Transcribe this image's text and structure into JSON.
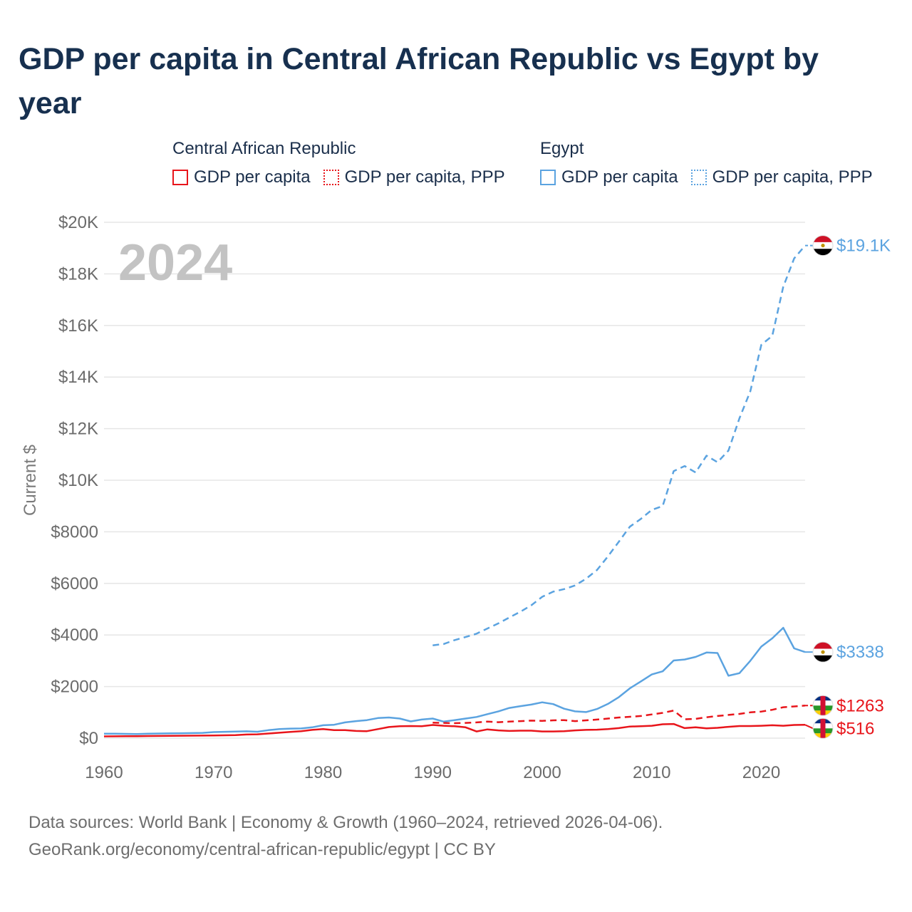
{
  "title": "GDP per capita in Central African Republic vs Egypt by year",
  "legend": {
    "groups": [
      {
        "title": "Central African Republic",
        "color": "#e8151b",
        "items": [
          {
            "label": "GDP per capita",
            "style": "solid"
          },
          {
            "label": "GDP per capita, PPP",
            "style": "dotted"
          }
        ]
      },
      {
        "title": "Egypt",
        "color": "#5ba3e0",
        "items": [
          {
            "label": "GDP per capita",
            "style": "solid"
          },
          {
            "label": "GDP per capita, PPP",
            "style": "dotted"
          }
        ]
      }
    ]
  },
  "chart_data": {
    "type": "line",
    "year_label": "2024",
    "ylabel": "Current $",
    "xlim": [
      1960,
      2024
    ],
    "ylim": [
      0,
      20000
    ],
    "xticks": [
      1960,
      1970,
      1980,
      1990,
      2000,
      2010,
      2020
    ],
    "xtick_labels": [
      "1960",
      "1970",
      "1980",
      "1990",
      "2000",
      "2010",
      "2020"
    ],
    "yticks": [
      0,
      2000,
      4000,
      6000,
      8000,
      10000,
      12000,
      14000,
      16000,
      18000,
      20000
    ],
    "ytick_labels": [
      "$0",
      "$2000",
      "$4000",
      "$6000",
      "$8000",
      "$10K",
      "$12K",
      "$14K",
      "$16K",
      "$18K",
      "$20K"
    ],
    "series": [
      {
        "name": "Egypt GDP per capita, PPP",
        "country": "Egypt",
        "color": "#5ba3e0",
        "dash": "dashed",
        "end_label": "$19.1K",
        "points": [
          [
            1990,
            3600
          ],
          [
            1991,
            3650
          ],
          [
            1992,
            3800
          ],
          [
            1993,
            3920
          ],
          [
            1994,
            4050
          ],
          [
            1995,
            4250
          ],
          [
            1996,
            4450
          ],
          [
            1997,
            4680
          ],
          [
            1998,
            4900
          ],
          [
            1999,
            5150
          ],
          [
            2000,
            5480
          ],
          [
            2001,
            5680
          ],
          [
            2002,
            5780
          ],
          [
            2003,
            5920
          ],
          [
            2004,
            6180
          ],
          [
            2005,
            6520
          ],
          [
            2006,
            7050
          ],
          [
            2007,
            7620
          ],
          [
            2008,
            8200
          ],
          [
            2009,
            8500
          ],
          [
            2010,
            8850
          ],
          [
            2011,
            9000
          ],
          [
            2012,
            10350
          ],
          [
            2013,
            10550
          ],
          [
            2014,
            10300
          ],
          [
            2015,
            10950
          ],
          [
            2016,
            10700
          ],
          [
            2017,
            11150
          ],
          [
            2018,
            12400
          ],
          [
            2019,
            13450
          ],
          [
            2020,
            15250
          ],
          [
            2021,
            15600
          ],
          [
            2022,
            17500
          ],
          [
            2023,
            18600
          ],
          [
            2024,
            19100
          ]
        ]
      },
      {
        "name": "Egypt GDP per capita",
        "country": "Egypt",
        "color": "#5ba3e0",
        "dash": "solid",
        "end_label": "$3338",
        "points": [
          [
            1960,
            170
          ],
          [
            1961,
            175
          ],
          [
            1962,
            165
          ],
          [
            1963,
            160
          ],
          [
            1964,
            170
          ],
          [
            1965,
            180
          ],
          [
            1966,
            185
          ],
          [
            1967,
            190
          ],
          [
            1968,
            195
          ],
          [
            1969,
            205
          ],
          [
            1970,
            235
          ],
          [
            1971,
            245
          ],
          [
            1972,
            255
          ],
          [
            1973,
            265
          ],
          [
            1974,
            250
          ],
          [
            1975,
            310
          ],
          [
            1976,
            350
          ],
          [
            1977,
            370
          ],
          [
            1978,
            375
          ],
          [
            1979,
            420
          ],
          [
            1980,
            500
          ],
          [
            1981,
            520
          ],
          [
            1982,
            610
          ],
          [
            1983,
            660
          ],
          [
            1984,
            700
          ],
          [
            1985,
            780
          ],
          [
            1986,
            800
          ],
          [
            1987,
            760
          ],
          [
            1988,
            650
          ],
          [
            1989,
            720
          ],
          [
            1990,
            760
          ],
          [
            1991,
            640
          ],
          [
            1992,
            700
          ],
          [
            1993,
            760
          ],
          [
            1994,
            820
          ],
          [
            1995,
            930
          ],
          [
            1996,
            1040
          ],
          [
            1997,
            1170
          ],
          [
            1998,
            1240
          ],
          [
            1999,
            1300
          ],
          [
            2000,
            1390
          ],
          [
            2001,
            1320
          ],
          [
            2002,
            1140
          ],
          [
            2003,
            1040
          ],
          [
            2004,
            1010
          ],
          [
            2005,
            1130
          ],
          [
            2006,
            1330
          ],
          [
            2007,
            1590
          ],
          [
            2008,
            1930
          ],
          [
            2009,
            2200
          ],
          [
            2010,
            2470
          ],
          [
            2011,
            2590
          ],
          [
            2012,
            3010
          ],
          [
            2013,
            3050
          ],
          [
            2014,
            3150
          ],
          [
            2015,
            3320
          ],
          [
            2016,
            3300
          ],
          [
            2017,
            2420
          ],
          [
            2018,
            2520
          ],
          [
            2019,
            3000
          ],
          [
            2020,
            3550
          ],
          [
            2021,
            3870
          ],
          [
            2022,
            4280
          ],
          [
            2023,
            3480
          ],
          [
            2024,
            3338
          ]
        ]
      },
      {
        "name": "Central African Republic GDP per capita, PPP",
        "country": "Central African Republic",
        "color": "#e8151b",
        "dash": "dashed",
        "end_label": "$1263",
        "points": [
          [
            1990,
            600
          ],
          [
            1991,
            590
          ],
          [
            1992,
            580
          ],
          [
            1993,
            590
          ],
          [
            1994,
            610
          ],
          [
            1995,
            640
          ],
          [
            1996,
            620
          ],
          [
            1997,
            640
          ],
          [
            1998,
            660
          ],
          [
            1999,
            680
          ],
          [
            2000,
            670
          ],
          [
            2001,
            690
          ],
          [
            2002,
            700
          ],
          [
            2003,
            660
          ],
          [
            2004,
            690
          ],
          [
            2005,
            720
          ],
          [
            2006,
            760
          ],
          [
            2007,
            800
          ],
          [
            2008,
            830
          ],
          [
            2009,
            860
          ],
          [
            2010,
            920
          ],
          [
            2011,
            980
          ],
          [
            2012,
            1070
          ],
          [
            2013,
            730
          ],
          [
            2014,
            750
          ],
          [
            2015,
            810
          ],
          [
            2016,
            860
          ],
          [
            2017,
            900
          ],
          [
            2018,
            940
          ],
          [
            2019,
            1000
          ],
          [
            2020,
            1030
          ],
          [
            2021,
            1100
          ],
          [
            2022,
            1200
          ],
          [
            2023,
            1230
          ],
          [
            2024,
            1263
          ]
        ]
      },
      {
        "name": "Central African Republic GDP per capita",
        "country": "Central African Republic",
        "color": "#e8151b",
        "dash": "solid",
        "end_label": "$516",
        "points": [
          [
            1960,
            70
          ],
          [
            1961,
            72
          ],
          [
            1962,
            75
          ],
          [
            1963,
            78
          ],
          [
            1964,
            82
          ],
          [
            1965,
            86
          ],
          [
            1966,
            90
          ],
          [
            1967,
            95
          ],
          [
            1968,
            98
          ],
          [
            1969,
            100
          ],
          [
            1970,
            105
          ],
          [
            1971,
            110
          ],
          [
            1972,
            120
          ],
          [
            1973,
            140
          ],
          [
            1974,
            150
          ],
          [
            1975,
            180
          ],
          [
            1976,
            210
          ],
          [
            1977,
            240
          ],
          [
            1978,
            270
          ],
          [
            1979,
            320
          ],
          [
            1980,
            350
          ],
          [
            1981,
            310
          ],
          [
            1982,
            310
          ],
          [
            1983,
            280
          ],
          [
            1984,
            270
          ],
          [
            1985,
            350
          ],
          [
            1986,
            430
          ],
          [
            1987,
            460
          ],
          [
            1988,
            470
          ],
          [
            1989,
            460
          ],
          [
            1990,
            510
          ],
          [
            1991,
            480
          ],
          [
            1992,
            460
          ],
          [
            1993,
            420
          ],
          [
            1994,
            260
          ],
          [
            1995,
            340
          ],
          [
            1996,
            300
          ],
          [
            1997,
            280
          ],
          [
            1998,
            290
          ],
          [
            1999,
            290
          ],
          [
            2000,
            260
          ],
          [
            2001,
            260
          ],
          [
            2002,
            270
          ],
          [
            2003,
            300
          ],
          [
            2004,
            320
          ],
          [
            2005,
            330
          ],
          [
            2006,
            350
          ],
          [
            2007,
            390
          ],
          [
            2008,
            450
          ],
          [
            2009,
            460
          ],
          [
            2010,
            480
          ],
          [
            2011,
            540
          ],
          [
            2012,
            550
          ],
          [
            2013,
            390
          ],
          [
            2014,
            420
          ],
          [
            2015,
            380
          ],
          [
            2016,
            400
          ],
          [
            2017,
            440
          ],
          [
            2018,
            470
          ],
          [
            2019,
            470
          ],
          [
            2020,
            480
          ],
          [
            2021,
            500
          ],
          [
            2022,
            480
          ],
          [
            2023,
            510
          ],
          [
            2024,
            516
          ]
        ]
      }
    ]
  },
  "footer": {
    "line1": "Data sources: World Bank | Economy & Growth (1960–2024, retrieved 2026-04-06).",
    "line2": "GeoRank.org/economy/central-african-republic/egypt | CC BY"
  }
}
